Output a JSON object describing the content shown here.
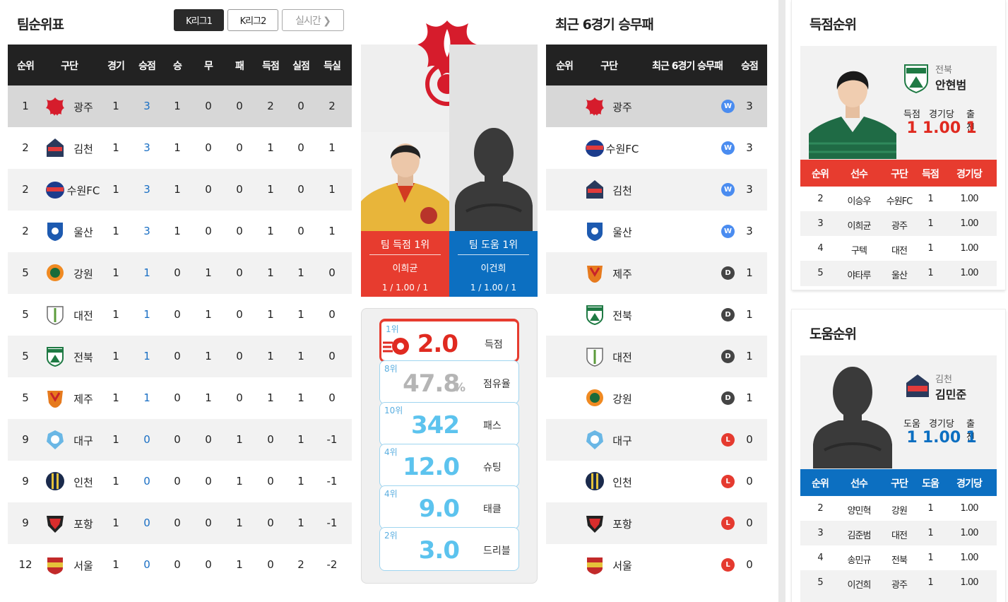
{
  "standings": {
    "title": "팀순위표",
    "tabs": [
      {
        "label": "K리그1",
        "active": true
      },
      {
        "label": "K리그2",
        "active": false
      },
      {
        "label": "실시간 ❯",
        "active": false
      }
    ],
    "headers": [
      "순위",
      "구단",
      "경기",
      "승점",
      "승",
      "무",
      "패",
      "득점",
      "실점",
      "득실"
    ],
    "rows": [
      {
        "rank": "1",
        "team": "광주",
        "emblem": "gwangju",
        "games": "1",
        "pts": "3",
        "w": "1",
        "d": "0",
        "l": "0",
        "gf": "2",
        "ga": "0",
        "gd": "2"
      },
      {
        "rank": "2",
        "team": "김천",
        "emblem": "gimcheon",
        "games": "1",
        "pts": "3",
        "w": "1",
        "d": "0",
        "l": "0",
        "gf": "1",
        "ga": "0",
        "gd": "1"
      },
      {
        "rank": "2",
        "team": "수원FC",
        "emblem": "suwonfc",
        "games": "1",
        "pts": "3",
        "w": "1",
        "d": "0",
        "l": "0",
        "gf": "1",
        "ga": "0",
        "gd": "1"
      },
      {
        "rank": "2",
        "team": "울산",
        "emblem": "ulsan",
        "games": "1",
        "pts": "3",
        "w": "1",
        "d": "0",
        "l": "0",
        "gf": "1",
        "ga": "0",
        "gd": "1"
      },
      {
        "rank": "5",
        "team": "강원",
        "emblem": "gangwon",
        "games": "1",
        "pts": "1",
        "w": "0",
        "d": "1",
        "l": "0",
        "gf": "1",
        "ga": "1",
        "gd": "0"
      },
      {
        "rank": "5",
        "team": "대전",
        "emblem": "daejeon",
        "games": "1",
        "pts": "1",
        "w": "0",
        "d": "1",
        "l": "0",
        "gf": "1",
        "ga": "1",
        "gd": "0"
      },
      {
        "rank": "5",
        "team": "전북",
        "emblem": "jeonbuk",
        "games": "1",
        "pts": "1",
        "w": "0",
        "d": "1",
        "l": "0",
        "gf": "1",
        "ga": "1",
        "gd": "0"
      },
      {
        "rank": "5",
        "team": "제주",
        "emblem": "jeju",
        "games": "1",
        "pts": "1",
        "w": "0",
        "d": "1",
        "l": "0",
        "gf": "1",
        "ga": "1",
        "gd": "0"
      },
      {
        "rank": "9",
        "team": "대구",
        "emblem": "daegu",
        "games": "1",
        "pts": "0",
        "w": "0",
        "d": "0",
        "l": "1",
        "gf": "0",
        "ga": "1",
        "gd": "-1"
      },
      {
        "rank": "9",
        "team": "인천",
        "emblem": "incheon",
        "games": "1",
        "pts": "0",
        "w": "0",
        "d": "0",
        "l": "1",
        "gf": "0",
        "ga": "1",
        "gd": "-1"
      },
      {
        "rank": "9",
        "team": "포항",
        "emblem": "pohang",
        "games": "1",
        "pts": "0",
        "w": "0",
        "d": "0",
        "l": "1",
        "gf": "0",
        "ga": "1",
        "gd": "-1"
      },
      {
        "rank": "12",
        "team": "서울",
        "emblem": "seoul",
        "games": "1",
        "pts": "0",
        "w": "0",
        "d": "0",
        "l": "1",
        "gf": "0",
        "ga": "2",
        "gd": "-2"
      }
    ]
  },
  "team_focus": {
    "top_scorer_label": "팀 득점 1위",
    "top_scorer_name": "이희균",
    "top_scorer_stat": "1 / 1.00 / 1",
    "top_assist_label": "팀 도움 1위",
    "top_assist_name": "이건희",
    "top_assist_stat": "1 / 1.00 / 1",
    "stats": [
      {
        "rank": "1위",
        "value": "2.0",
        "name": "득점",
        "style": "red"
      },
      {
        "rank": "8위",
        "value": "47.8",
        "unit": "%",
        "name": "점유율",
        "style": "gray"
      },
      {
        "rank": "10위",
        "value": "342",
        "name": "패스",
        "style": "blue"
      },
      {
        "rank": "4위",
        "value": "12.0",
        "name": "슈팅",
        "style": "blue"
      },
      {
        "rank": "4위",
        "value": "9.0",
        "name": "태클",
        "style": "blue"
      },
      {
        "rank": "2위",
        "value": "3.0",
        "name": "드리블",
        "style": "blue"
      }
    ]
  },
  "recent": {
    "title": "최근 6경기 승무패",
    "headers": [
      "순위",
      "구단",
      "최근 6경기 승무패",
      "승점"
    ],
    "rows": [
      {
        "team": "광주",
        "emblem": "gwangju",
        "result": "W",
        "pts": "3"
      },
      {
        "team": "수원FC",
        "emblem": "suwonfc",
        "result": "W",
        "pts": "3"
      },
      {
        "team": "김천",
        "emblem": "gimcheon",
        "result": "W",
        "pts": "3"
      },
      {
        "team": "울산",
        "emblem": "ulsan",
        "result": "W",
        "pts": "3"
      },
      {
        "team": "제주",
        "emblem": "jeju",
        "result": "D",
        "pts": "1"
      },
      {
        "team": "전북",
        "emblem": "jeonbuk",
        "result": "D",
        "pts": "1"
      },
      {
        "team": "대전",
        "emblem": "daejeon",
        "result": "D",
        "pts": "1"
      },
      {
        "team": "강원",
        "emblem": "gangwon",
        "result": "D",
        "pts": "1"
      },
      {
        "team": "대구",
        "emblem": "daegu",
        "result": "L",
        "pts": "0"
      },
      {
        "team": "인천",
        "emblem": "incheon",
        "result": "L",
        "pts": "0"
      },
      {
        "team": "포항",
        "emblem": "pohang",
        "result": "L",
        "pts": "0"
      },
      {
        "team": "서울",
        "emblem": "seoul",
        "result": "L",
        "pts": "0"
      }
    ]
  },
  "scorers": {
    "title": "득점순위",
    "leader": {
      "club": "전북",
      "name": "안현범",
      "stat_labels": [
        "득점",
        "경기당",
        "출전"
      ],
      "stats": [
        "1",
        "1.00",
        "1"
      ]
    },
    "headers": [
      "순위",
      "선수",
      "구단",
      "득점",
      "경기당"
    ],
    "rows": [
      {
        "rank": "2",
        "player": "이승우",
        "club": "수원FC",
        "value": "1",
        "avg": "1.00"
      },
      {
        "rank": "3",
        "player": "이희균",
        "club": "광주",
        "value": "1",
        "avg": "1.00"
      },
      {
        "rank": "4",
        "player": "구텍",
        "club": "대전",
        "value": "1",
        "avg": "1.00"
      },
      {
        "rank": "5",
        "player": "야타루",
        "club": "울산",
        "value": "1",
        "avg": "1.00"
      }
    ]
  },
  "assists": {
    "title": "도움순위",
    "leader": {
      "club": "김천",
      "name": "김민준",
      "stat_labels": [
        "도움",
        "경기당",
        "출전"
      ],
      "stats": [
        "1",
        "1.00",
        "1"
      ]
    },
    "headers": [
      "순위",
      "선수",
      "구단",
      "도움",
      "경기당"
    ],
    "rows": [
      {
        "rank": "2",
        "player": "양민혁",
        "club": "강원",
        "value": "1",
        "avg": "1.00"
      },
      {
        "rank": "3",
        "player": "김준범",
        "club": "대전",
        "value": "1",
        "avg": "1.00"
      },
      {
        "rank": "4",
        "player": "송민규",
        "club": "전북",
        "value": "1",
        "avg": "1.00"
      },
      {
        "rank": "5",
        "player": "이건희",
        "club": "광주",
        "value": "1",
        "avg": "1.00"
      }
    ]
  },
  "colors": {
    "red": "#e73c2f",
    "blue": "#0c6fc1",
    "win": "#4a8cf0",
    "draw": "#444444",
    "loss": "#e53a2f"
  }
}
